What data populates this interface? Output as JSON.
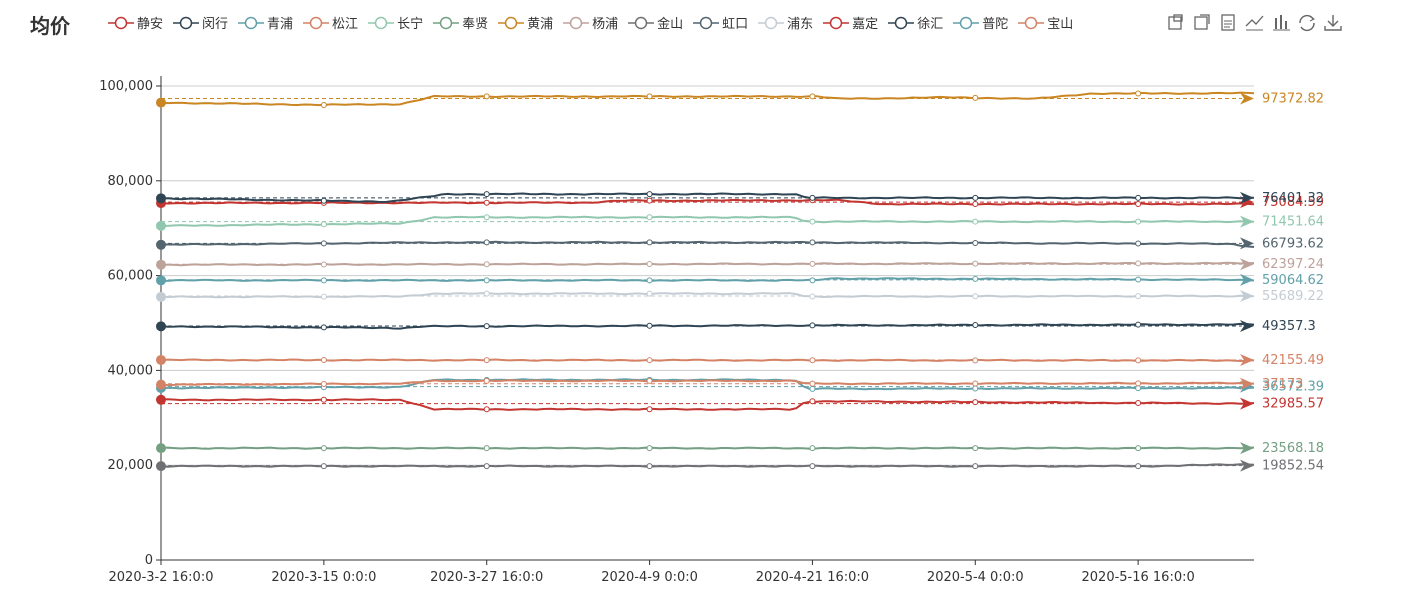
{
  "title": "均价",
  "chart_data": {
    "type": "line",
    "title": "均价",
    "x_ticks": [
      "2020-3-2 16:0:0",
      "2020-3-15 0:0:0",
      "2020-3-27 16:0:0",
      "2020-4-9 0:0:0",
      "2020-4-21 16:0:0",
      "2020-5-4 0:0:0",
      "2020-5-16 16:0:0"
    ],
    "y_ticks": [
      "0",
      "20,000",
      "40,000",
      "60,000",
      "80,000",
      "100,000"
    ],
    "ylim": [
      0,
      100000
    ],
    "grid": true,
    "series": [
      {
        "name": "静安",
        "color": "#c23531",
        "end_label": "75084.59",
        "keypoints": [
          [
            0,
            75300
          ],
          [
            0.39,
            75400
          ],
          [
            0.42,
            75800
          ],
          [
            0.62,
            75900
          ],
          [
            0.66,
            75100
          ],
          [
            1,
            75100
          ]
        ],
        "mean": 75500
      },
      {
        "name": "闵行",
        "color": "#2f4554",
        "end_label": "76401.32",
        "keypoints": [
          [
            0,
            76300
          ],
          [
            0.21,
            75600
          ],
          [
            0.25,
            76800
          ],
          [
            0.26,
            77200
          ],
          [
            0.58,
            77200
          ],
          [
            0.59,
            76400
          ],
          [
            1,
            76400
          ]
        ],
        "mean": 76400
      },
      {
        "name": "青浦",
        "color": "#61a0a8",
        "end_label": "59064.62",
        "keypoints": [
          [
            0,
            59000
          ],
          [
            0.6,
            59000
          ],
          [
            0.61,
            59400
          ],
          [
            1,
            59100
          ]
        ],
        "mean": 59100
      },
      {
        "name": "松江",
        "color": "#d48265",
        "end_label": "42155.49",
        "keypoints": [
          [
            0,
            42200
          ],
          [
            1,
            42100
          ]
        ],
        "mean": 42200
      },
      {
        "name": "长宁",
        "color": "#91c7ae",
        "end_label": "71451.64",
        "keypoints": [
          [
            0,
            70500
          ],
          [
            0.22,
            71000
          ],
          [
            0.25,
            72300
          ],
          [
            0.58,
            72300
          ],
          [
            0.59,
            71400
          ],
          [
            1,
            71400
          ]
        ],
        "mean": 71400
      },
      {
        "name": "奉贤",
        "color": "#749f83",
        "end_label": "23568.18",
        "keypoints": [
          [
            0,
            23600
          ],
          [
            1,
            23600
          ]
        ],
        "mean": 23600
      },
      {
        "name": "黄浦",
        "color": "#ca8622",
        "end_label": "97372.82",
        "keypoints": [
          [
            0,
            96500
          ],
          [
            0.15,
            96000
          ],
          [
            0.22,
            96200
          ],
          [
            0.25,
            97800
          ],
          [
            0.6,
            97800
          ],
          [
            0.62,
            97300
          ],
          [
            0.72,
            97600
          ],
          [
            0.8,
            97300
          ],
          [
            0.85,
            98400
          ],
          [
            1,
            98500
          ]
        ],
        "mean": 97372
      },
      {
        "name": "杨浦",
        "color": "#bda29a",
        "end_label": "62397.24",
        "keypoints": [
          [
            0,
            62300
          ],
          [
            1,
            62600
          ]
        ],
        "mean": 62400
      },
      {
        "name": "金山",
        "color": "#6e7074",
        "end_label": "19852.54",
        "keypoints": [
          [
            0,
            19800
          ],
          [
            0.9,
            19800
          ],
          [
            1,
            20200
          ]
        ],
        "mean": 19900
      },
      {
        "name": "虹口",
        "color": "#546570",
        "end_label": "66793.62",
        "keypoints": [
          [
            0,
            66500
          ],
          [
            0.25,
            67000
          ],
          [
            0.6,
            67000
          ],
          [
            0.98,
            66700
          ],
          [
            1,
            66000
          ]
        ],
        "mean": 66800
      },
      {
        "name": "浦东",
        "color": "#c4ccd3",
        "end_label": "55689.22",
        "keypoints": [
          [
            0,
            55500
          ],
          [
            0.22,
            55600
          ],
          [
            0.25,
            56200
          ],
          [
            0.58,
            56200
          ],
          [
            0.59,
            55600
          ],
          [
            1,
            55700
          ]
        ],
        "mean": 55700
      },
      {
        "name": "嘉定",
        "color": "#c23531",
        "end_label": "32985.57",
        "keypoints": [
          [
            0,
            33800
          ],
          [
            0.22,
            33800
          ],
          [
            0.25,
            31800
          ],
          [
            0.58,
            31800
          ],
          [
            0.59,
            33500
          ],
          [
            1,
            33000
          ]
        ],
        "mean": 33000
      },
      {
        "name": "徐汇",
        "color": "#2f4554",
        "end_label": "49357.3",
        "keypoints": [
          [
            0,
            49300
          ],
          [
            0.2,
            49000
          ],
          [
            0.22,
            48900
          ],
          [
            0.24,
            49300
          ],
          [
            1,
            49700
          ]
        ],
        "mean": 49357
      },
      {
        "name": "普陀",
        "color": "#61a0a8",
        "end_label": "36572.39",
        "keypoints": [
          [
            0,
            36300
          ],
          [
            0.22,
            36500
          ],
          [
            0.25,
            38000
          ],
          [
            0.58,
            38000
          ],
          [
            0.59,
            36100
          ],
          [
            1,
            36300
          ]
        ],
        "mean": 36572
      },
      {
        "name": "宝山",
        "color": "#d48265",
        "end_label": "37173",
        "keypoints": [
          [
            0,
            37000
          ],
          [
            0.22,
            37200
          ],
          [
            0.25,
            37800
          ],
          [
            0.58,
            37800
          ],
          [
            0.59,
            37200
          ],
          [
            1,
            37300
          ]
        ],
        "mean": 37173
      }
    ]
  },
  "toolbox": [
    {
      "name": "zoom-icon"
    },
    {
      "name": "zoom-reset-icon"
    },
    {
      "name": "data-view-icon"
    },
    {
      "name": "line-chart-icon"
    },
    {
      "name": "bar-chart-icon"
    },
    {
      "name": "restore-icon"
    },
    {
      "name": "download-icon"
    }
  ]
}
